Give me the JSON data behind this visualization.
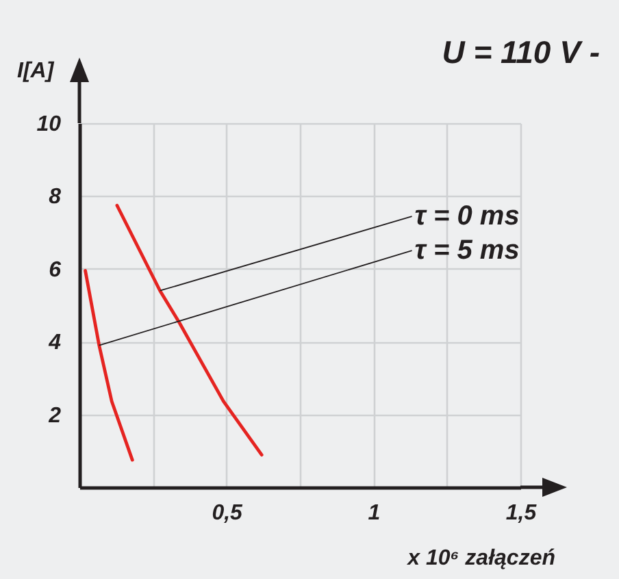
{
  "chart_data": {
    "type": "line",
    "title": "U = 110 V -",
    "xlabel": "x 10⁶ załączeń",
    "ylabel": "I[A]",
    "series": [
      {
        "color": "#e52421",
        "x": [
          0.02,
          0.067,
          0.11,
          0.18
        ],
        "values": [
          5.95,
          3.9,
          2.36,
          0.75
        ]
      },
      {
        "color": "#e52421",
        "x": [
          0.128,
          0.274,
          0.34,
          0.49,
          0.62
        ],
        "values": [
          7.74,
          5.4,
          4.52,
          2.36,
          0.89
        ]
      }
    ],
    "annotations": [
      {
        "text": "τ = 0 ms",
        "x": 0.274,
        "y": 5.4
      },
      {
        "text": "τ = 5 ms",
        "x": 0.067,
        "y": 3.9
      }
    ],
    "xlim": [
      0,
      1.5
    ],
    "ylim": [
      0,
      10
    ],
    "xticks": [
      {
        "value": 0.25,
        "label": null
      },
      {
        "value": 0.5,
        "label": "0,5"
      },
      {
        "value": 0.75,
        "label": null
      },
      {
        "value": 1,
        "label": "1"
      },
      {
        "value": 1.25,
        "label": null
      },
      {
        "value": 1.5,
        "label": "1,5"
      }
    ],
    "yticks": [
      2,
      4,
      6,
      8,
      10
    ],
    "grid": true,
    "legend": false,
    "marker": "none",
    "line_style": "solid"
  }
}
